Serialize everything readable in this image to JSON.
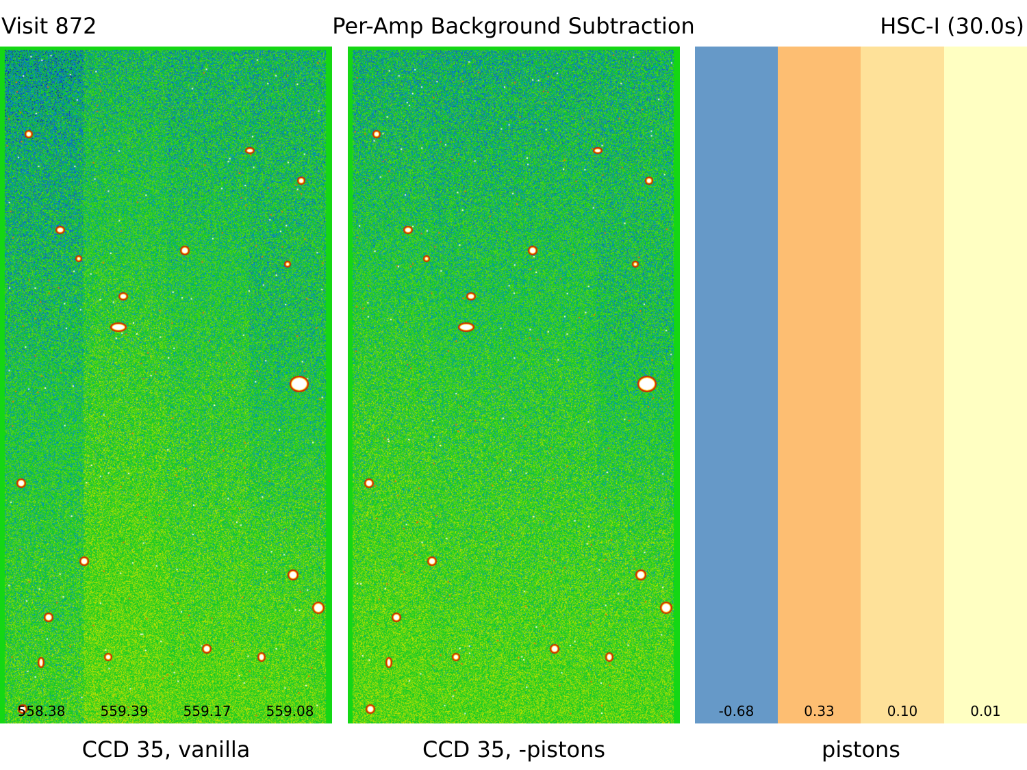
{
  "header": {
    "left": "Visit 872",
    "center": "Per-Amp Background Subtraction",
    "right": "HSC-I (30.0s)"
  },
  "panels": {
    "vanilla": {
      "caption": "CCD 35, vanilla",
      "amp_values": [
        "558.38",
        "559.39",
        "559.17",
        "559.08"
      ]
    },
    "pistons_subtracted": {
      "caption": "CCD 35, -pistons"
    },
    "pistons": {
      "caption": "pistons",
      "amps": [
        {
          "value": "-0.68",
          "color": "#6699c8"
        },
        {
          "value": "0.33",
          "color": "#fdbe72"
        },
        {
          "value": "0.10",
          "color": "#fee199"
        },
        {
          "value": "0.01",
          "color": "#ffffc2"
        }
      ]
    }
  }
}
